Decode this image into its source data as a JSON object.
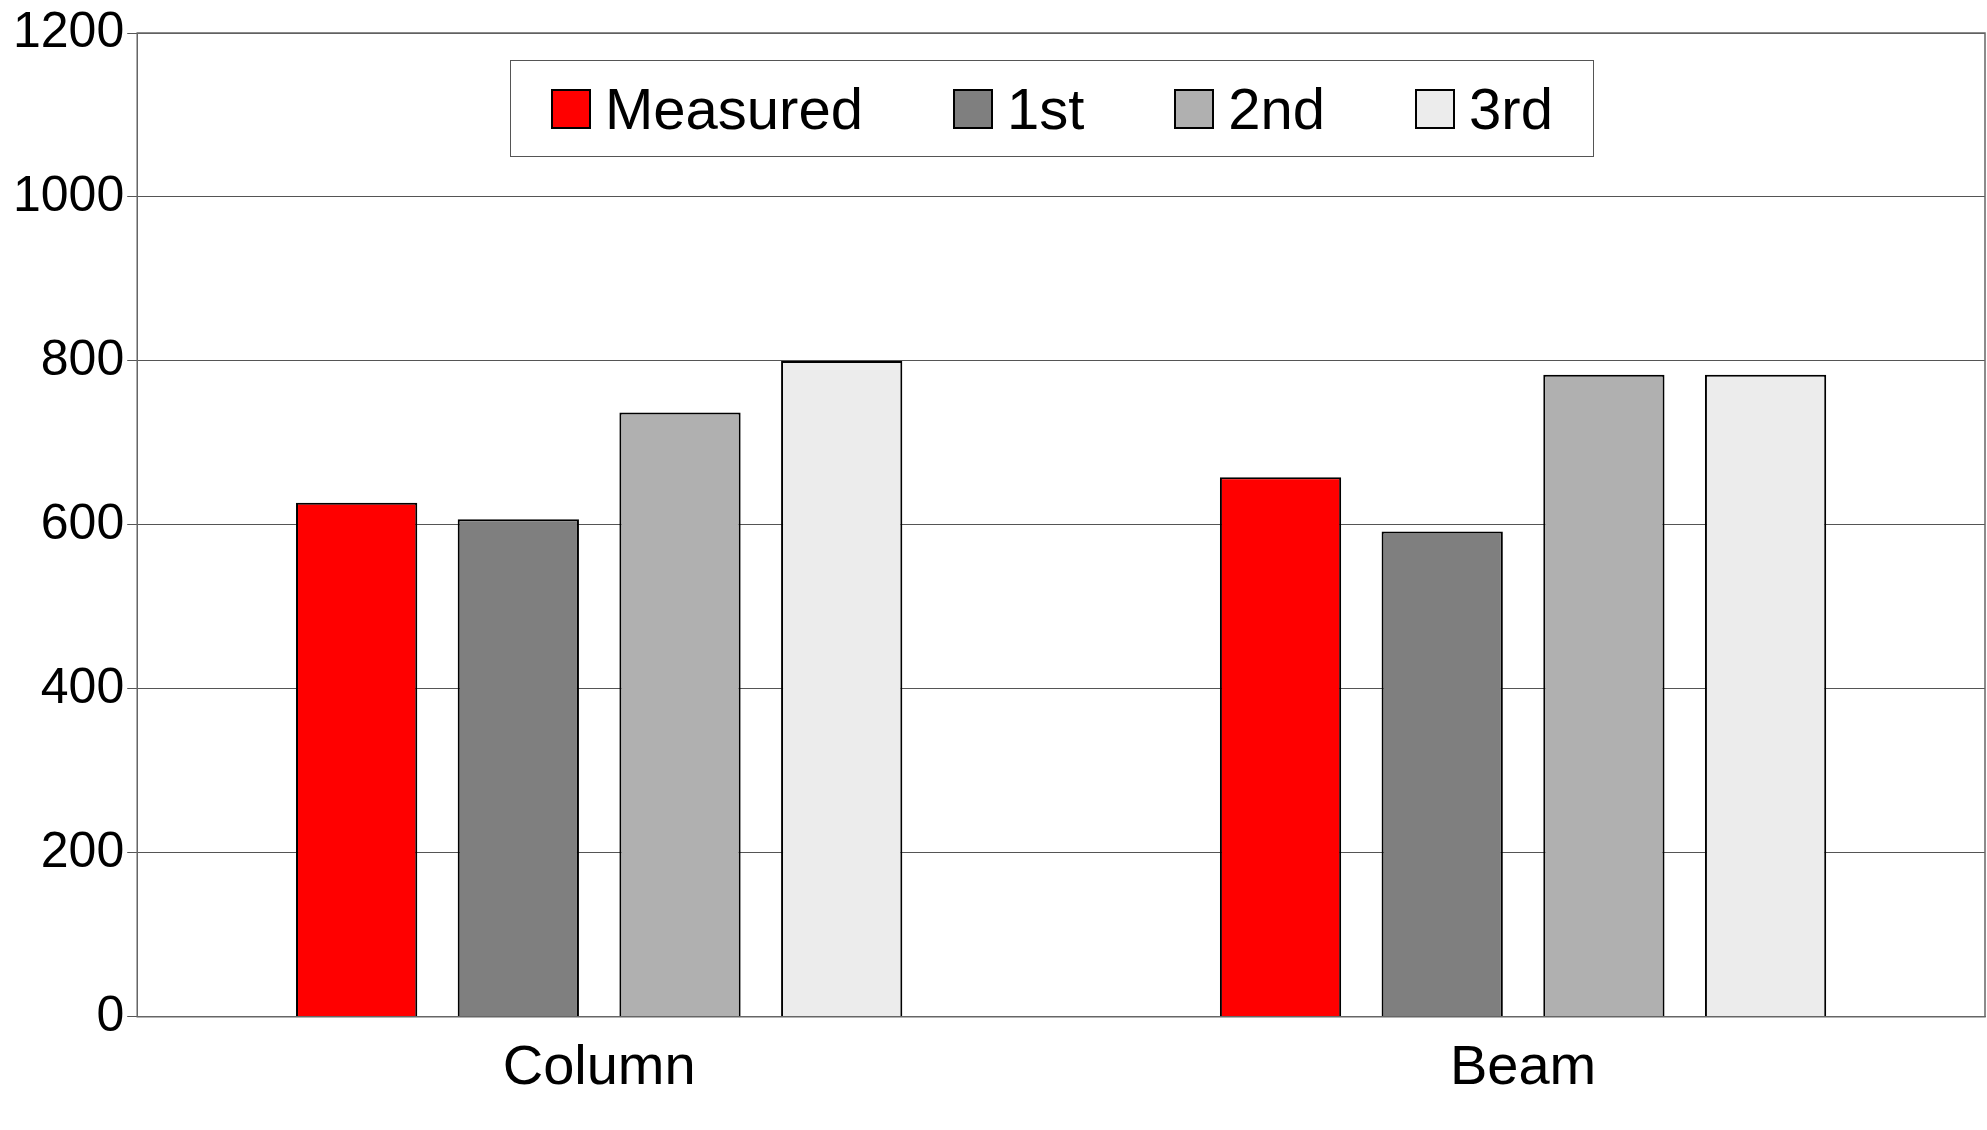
{
  "chart_data": {
    "type": "bar",
    "categories": [
      "Column",
      "Beam"
    ],
    "series": [
      {
        "name": "Measured",
        "color": "#ff0000",
        "values": [
          627,
          658
        ]
      },
      {
        "name": "1st",
        "color": "#7f7f7f",
        "values": [
          607,
          592
        ]
      },
      {
        "name": "2nd",
        "color": "#b0b0b0",
        "values": [
          737,
          783
        ]
      },
      {
        "name": "3rd",
        "color": "#ececec",
        "values": [
          800,
          783
        ]
      }
    ],
    "ylim": [
      0,
      1200
    ],
    "yticks": [
      0,
      200,
      400,
      600,
      800,
      1000,
      1200
    ],
    "grid": "y",
    "legend": "top"
  }
}
